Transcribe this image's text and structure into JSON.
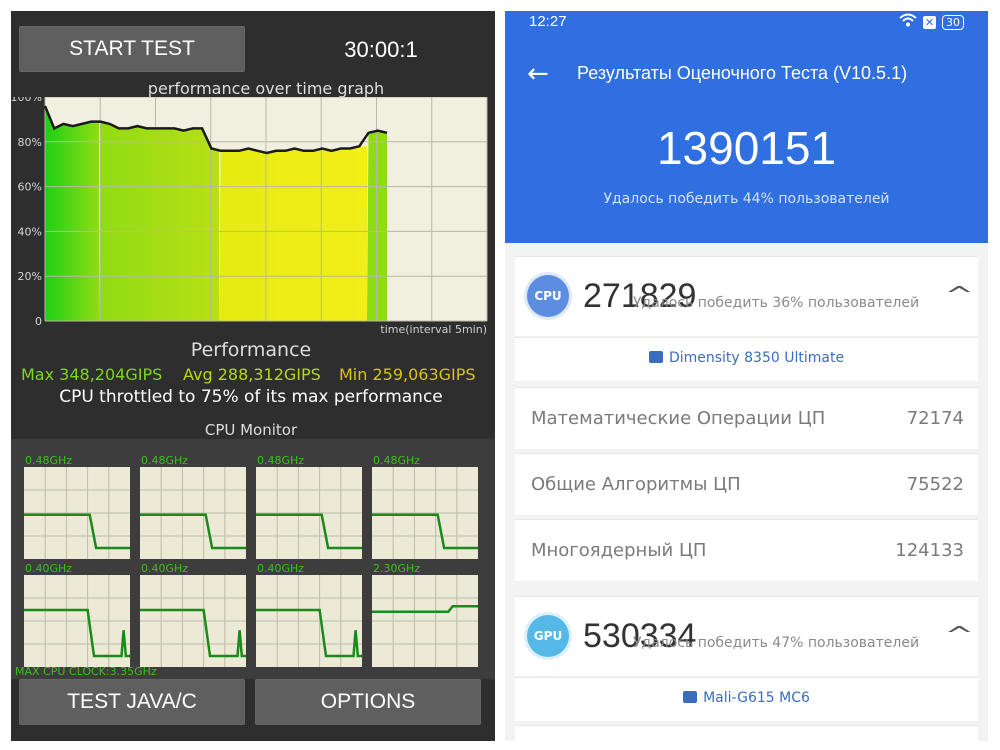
{
  "left": {
    "start_label": "START TEST",
    "timer": "30:00:1",
    "graph_title": "performance over time graph",
    "y_ticks": [
      "100%",
      "80%",
      "60%",
      "40%",
      "20%",
      "0"
    ],
    "x_caption": "time(interval 5min)",
    "perf_title": "Performance",
    "max": "Max 348,204GIPS",
    "avg": "Avg 288,312GIPS",
    "min": "Min 259,063GIPS",
    "throttle": "CPU throttled to 75% of its max performance",
    "cpu_monitor_title": "CPU Monitor",
    "core_freqs": [
      "0.48GHz",
      "0.48GHz",
      "0.48GHz",
      "0.48GHz",
      "0.40GHz",
      "0.40GHz",
      "0.40GHz",
      "2.30GHz"
    ],
    "max_clock": "MAX CPU CLOCK:3.35GHz",
    "java_label": "TEST JAVA/C",
    "options_label": "OPTIONS",
    "colors": {
      "max": "#7cd61c",
      "avg": "#b5d816",
      "min": "#d8c216"
    }
  },
  "chart_data": {
    "type": "line",
    "title": "performance over time graph",
    "xlabel": "time(interval 5min)",
    "ylabel": "",
    "ylim": [
      0,
      100
    ],
    "y_ticks": [
      "0",
      "20%",
      "40%",
      "60%",
      "80%",
      "100%"
    ],
    "series": [
      {
        "values": [
          96,
          86,
          88,
          87,
          88,
          89,
          89,
          88,
          86,
          86,
          87,
          86,
          86,
          86,
          86,
          85,
          86,
          86,
          77,
          76,
          76,
          76,
          77,
          76,
          75,
          76,
          76,
          77,
          76,
          76,
          77,
          76,
          77,
          77,
          78,
          84,
          85,
          84
        ]
      }
    ]
  },
  "right": {
    "status_time": "12:27",
    "battery": "30",
    "title": "Результаты Оценочного Теста (V10.5.1)",
    "total_score": "1390151",
    "total_sub": "Удалось победить 44% пользователей",
    "cpu": {
      "badge": "CPU",
      "score": "271829",
      "beat": "Удалось победить 36% пользователей",
      "chip": "Dimensity 8350 Ultimate",
      "rows": [
        {
          "label": "Математические Операции ЦП",
          "value": "72174"
        },
        {
          "label": "Общие Алгоритмы ЦП",
          "value": "75522"
        },
        {
          "label": "Многоядерный ЦП",
          "value": "124133"
        }
      ],
      "badge_color": "#5b8ee0"
    },
    "gpu": {
      "badge": "GPU",
      "score": "530334",
      "beat": "Удалось победить 47% пользователей",
      "chip": "Mali-G615 MC6",
      "badge_color": "#55b8e6"
    }
  }
}
